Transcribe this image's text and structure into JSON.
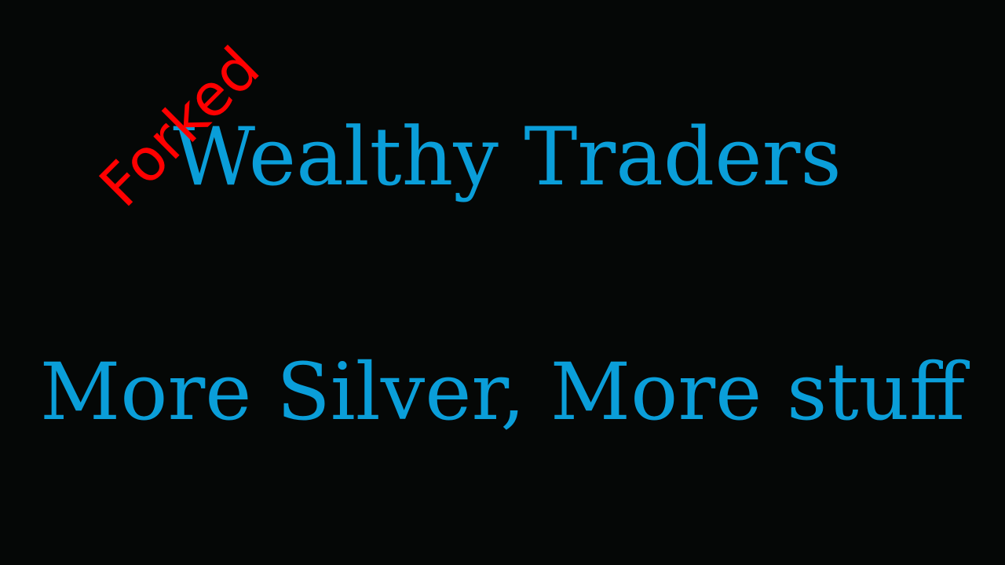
{
  "title": "Wealthy Traders",
  "subtitle": "More Silver, More stuff",
  "stamp": "Forked",
  "colors": {
    "background": "#050706",
    "text": "#0a9ed9",
    "stamp": "#ff0000"
  }
}
